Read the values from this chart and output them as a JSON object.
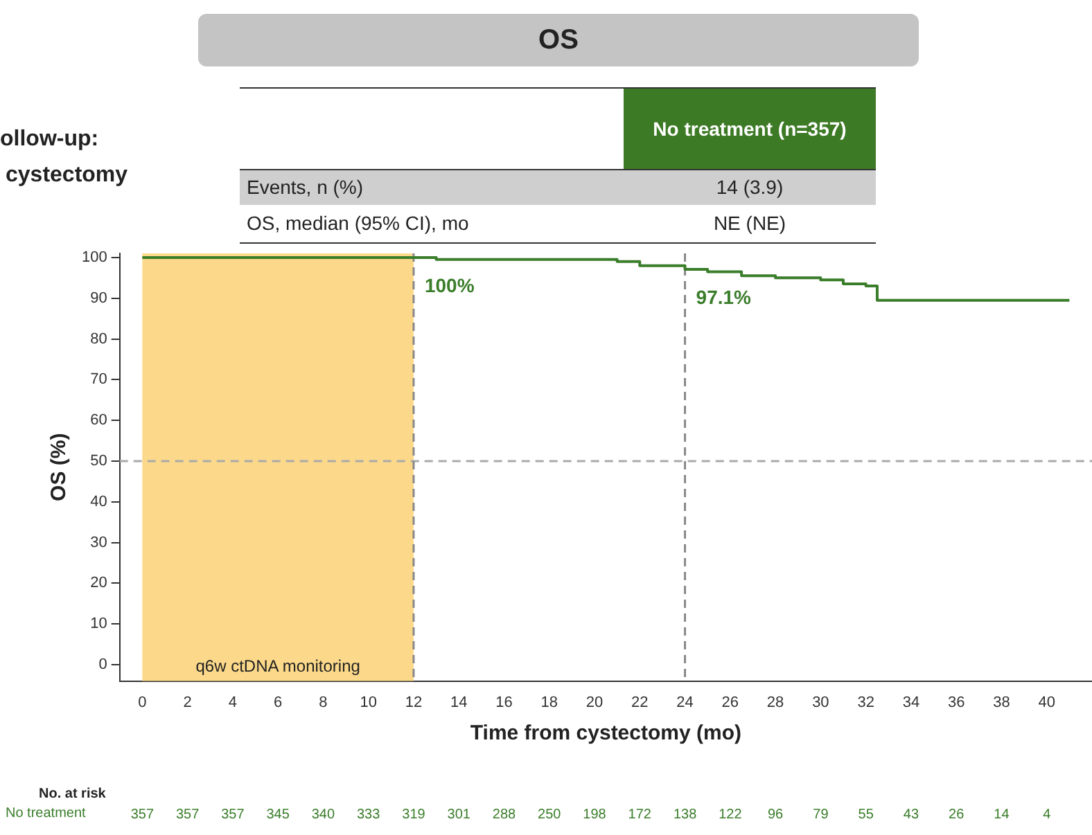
{
  "chart_data": {
    "type": "step",
    "title": "OS",
    "xlabel": "Time from cystectomy (mo)",
    "ylabel": "OS (%)",
    "x": [
      0,
      13,
      21,
      22,
      24,
      25,
      26.5,
      28,
      30,
      31,
      32,
      32.5,
      41
    ],
    "series": [
      {
        "color": "#3a7d2a",
        "values": [
          100,
          99.5,
          99,
          98,
          97.1,
          96.5,
          95.5,
          95,
          94.5,
          93.5,
          93,
          89.5,
          89.5
        ]
      }
    ],
    "xlim": [
      -1,
      42
    ],
    "xticks": [
      0,
      2,
      4,
      6,
      8,
      10,
      12,
      14,
      16,
      18,
      20,
      22,
      24,
      26,
      28,
      30,
      32,
      34,
      36,
      38,
      40
    ],
    "ylim": [
      -4,
      101
    ],
    "yticks": [
      0,
      10,
      20,
      30,
      40,
      50,
      60,
      70,
      80,
      90,
      100
    ],
    "grid": false,
    "legend": false,
    "marker": "none",
    "line_style": "solid",
    "ref_lines": [
      {
        "axis": "y",
        "value": 50,
        "color": "#aaaaaa",
        "line_style": "dashed"
      },
      {
        "axis": "x",
        "value": 12,
        "color": "#888888",
        "line_style": "dashed"
      },
      {
        "axis": "x",
        "value": 24,
        "color": "#888888",
        "line_style": "dashed"
      }
    ],
    "bands": [
      {
        "axis": "x",
        "from": 0,
        "to": 12,
        "label": "q6w ctDNA monitoring",
        "color": "#fcd98a"
      }
    ],
    "annotations": [
      "ollow-up:",
      "cystectomy",
      "No treatment (n=357)",
      "Events, n (%)",
      "14 (3.9)",
      "OS, median (95% CI), mo",
      "NE (NE)",
      "No. at risk",
      "No treatment",
      "357",
      "357",
      "357",
      "345",
      "340",
      "333",
      "319",
      "301",
      "288",
      "250",
      "198",
      "172",
      "138",
      "122",
      "96",
      "79",
      "55",
      "43",
      "26",
      "14",
      "4",
      {
        "text": "100%",
        "x": 12,
        "y": 100
      },
      {
        "text": "97.1%",
        "x": 24,
        "y": 97.1
      }
    ]
  }
}
